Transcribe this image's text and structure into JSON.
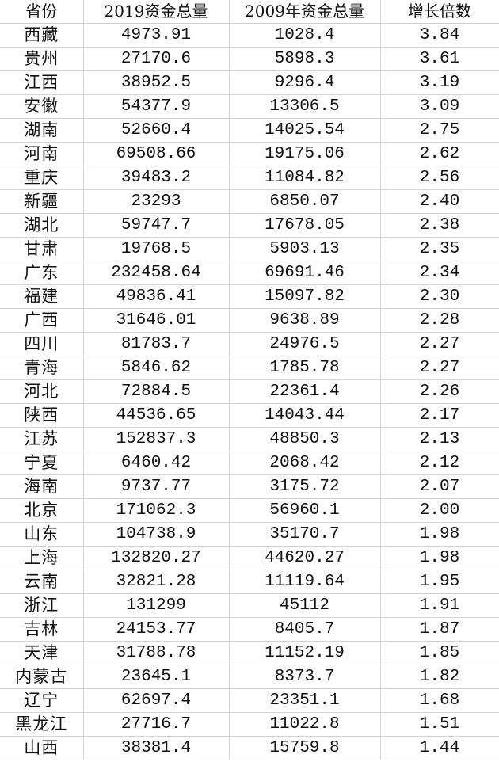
{
  "table": {
    "headers": [
      "省份",
      "2019资金总量",
      "2009年资金总量",
      "增长倍数"
    ],
    "rows": [
      [
        "西藏",
        "4973.91",
        "1028.4",
        "3.84"
      ],
      [
        "贵州",
        "27170.6",
        "5898.3",
        "3.61"
      ],
      [
        "江西",
        "38952.5",
        "9296.4",
        "3.19"
      ],
      [
        "安徽",
        "54377.9",
        "13306.5",
        "3.09"
      ],
      [
        "湖南",
        "52660.4",
        "14025.54",
        "2.75"
      ],
      [
        "河南",
        "69508.66",
        "19175.06",
        "2.62"
      ],
      [
        "重庆",
        "39483.2",
        "11084.82",
        "2.56"
      ],
      [
        "新疆",
        "23293",
        "6850.07",
        "2.40"
      ],
      [
        "湖北",
        "59747.7",
        "17678.05",
        "2.38"
      ],
      [
        "甘肃",
        "19768.5",
        "5903.13",
        "2.35"
      ],
      [
        "广东",
        "232458.64",
        "69691.46",
        "2.34"
      ],
      [
        "福建",
        "49836.41",
        "15097.82",
        "2.30"
      ],
      [
        "广西",
        "31646.01",
        "9638.89",
        "2.28"
      ],
      [
        "四川",
        "81783.7",
        "24976.5",
        "2.27"
      ],
      [
        "青海",
        "5846.62",
        "1785.78",
        "2.27"
      ],
      [
        "河北",
        "72884.5",
        "22361.4",
        "2.26"
      ],
      [
        "陕西",
        "44536.65",
        "14043.44",
        "2.17"
      ],
      [
        "江苏",
        "152837.3",
        "48850.3",
        "2.13"
      ],
      [
        "宁夏",
        "6460.42",
        "2068.42",
        "2.12"
      ],
      [
        "海南",
        "9737.77",
        "3175.72",
        "2.07"
      ],
      [
        "北京",
        "171062.3",
        "56960.1",
        "2.00"
      ],
      [
        "山东",
        "104738.9",
        "35170.7",
        "1.98"
      ],
      [
        "上海",
        "132820.27",
        "44620.27",
        "1.98"
      ],
      [
        "云南",
        "32821.28",
        "11119.64",
        "1.95"
      ],
      [
        "浙江",
        "131299",
        "45112",
        "1.91"
      ],
      [
        "吉林",
        "24153.77",
        "8405.7",
        "1.87"
      ],
      [
        "天津",
        "31788.78",
        "11152.19",
        "1.85"
      ],
      [
        "内蒙古",
        "23645.1",
        "8373.7",
        "1.82"
      ],
      [
        "辽宁",
        "62697.4",
        "23351.1",
        "1.68"
      ],
      [
        "黑龙江",
        "27716.7",
        "11022.8",
        "1.51"
      ],
      [
        "山西",
        "38381.4",
        "15759.8",
        "1.44"
      ]
    ]
  }
}
